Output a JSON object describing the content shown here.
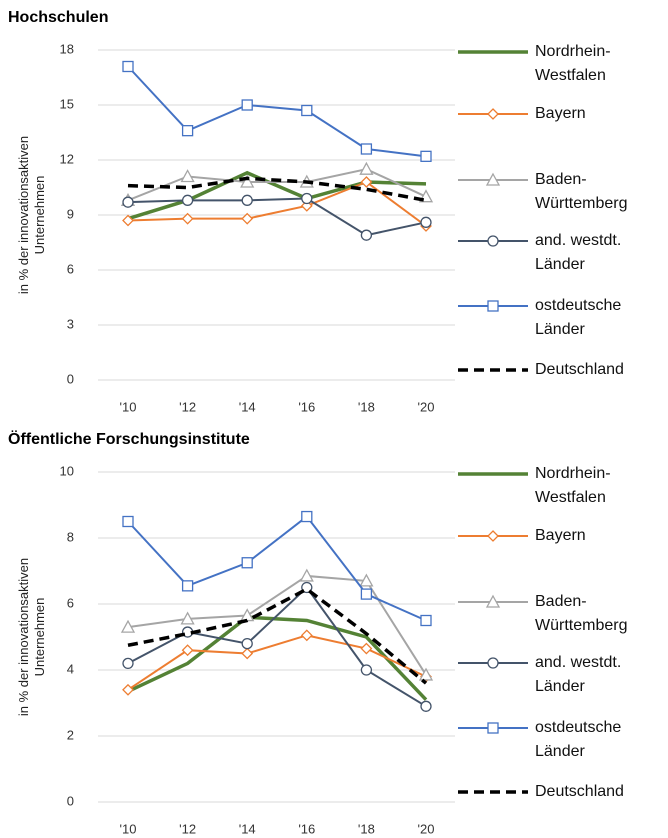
{
  "chart_data": [
    {
      "type": "line",
      "title": "Hochschulen",
      "y_label": "in % der innovationsaktiven\nUnternehmen",
      "categories": [
        "'10",
        "'12",
        "'14",
        "'16",
        "'18",
        "'20"
      ],
      "ylim": [
        0,
        18
      ],
      "yticks": [
        0,
        3,
        6,
        9,
        12,
        15,
        18
      ],
      "grid": true,
      "series": [
        {
          "name": "Nordrhein-\nWestfalen",
          "color": "#548235",
          "marker": "none",
          "values": [
            8.8,
            9.8,
            11.3,
            9.9,
            10.8,
            10.7
          ]
        },
        {
          "name": "Bayern",
          "color": "#ed7d31",
          "marker": "diamond",
          "values": [
            8.7,
            8.8,
            8.8,
            9.5,
            10.8,
            8.4
          ]
        },
        {
          "name": "Baden-\nWürttemberg",
          "color": "#a5a5a5",
          "marker": "triangle",
          "values": [
            9.8,
            11.1,
            10.8,
            10.8,
            11.5,
            10.0
          ]
        },
        {
          "name": "and. westdt.\nLänder",
          "color": "#44546a",
          "marker": "circle",
          "values": [
            9.7,
            9.8,
            9.8,
            9.9,
            7.9,
            8.6
          ]
        },
        {
          "name": "ostdeutsche\nLänder",
          "color": "#4472c4",
          "marker": "square",
          "values": [
            17.1,
            13.6,
            15.0,
            14.7,
            12.6,
            12.2
          ]
        },
        {
          "name": "Deutschland",
          "color": "#000000",
          "marker": "none",
          "dashed": true,
          "values": [
            10.6,
            10.5,
            11.0,
            10.8,
            10.4,
            9.8
          ]
        }
      ]
    },
    {
      "type": "line",
      "title": "Öffentliche Forschungsinstitute",
      "y_label": "in % der innovationsaktiven\nUnternehmen",
      "categories": [
        "'10",
        "'12",
        "'14",
        "'16",
        "'18",
        "'20"
      ],
      "ylim": [
        0,
        10
      ],
      "yticks": [
        0,
        2,
        4,
        6,
        8,
        10
      ],
      "grid": true,
      "series": [
        {
          "name": "Nordrhein-\nWestfalen",
          "color": "#548235",
          "marker": "none",
          "values": [
            3.35,
            4.2,
            5.6,
            5.5,
            5.0,
            3.1
          ]
        },
        {
          "name": "Bayern",
          "color": "#ed7d31",
          "marker": "diamond",
          "values": [
            3.4,
            4.6,
            4.5,
            5.05,
            4.65,
            3.8
          ]
        },
        {
          "name": "Baden-\nWürttemberg",
          "color": "#a5a5a5",
          "marker": "triangle",
          "values": [
            5.3,
            5.55,
            5.65,
            6.85,
            6.7,
            3.85
          ]
        },
        {
          "name": "and. westdt.\nLänder",
          "color": "#44546a",
          "marker": "circle",
          "values": [
            4.2,
            5.15,
            4.8,
            6.5,
            4.0,
            2.9
          ]
        },
        {
          "name": "ostdeutsche\nLänder",
          "color": "#4472c4",
          "marker": "square",
          "values": [
            8.5,
            6.55,
            7.25,
            8.65,
            6.3,
            5.5
          ]
        },
        {
          "name": "Deutschland",
          "color": "#000000",
          "marker": "none",
          "dashed": true,
          "values": [
            4.75,
            5.1,
            5.5,
            6.45,
            5.1,
            3.6
          ]
        }
      ]
    }
  ]
}
